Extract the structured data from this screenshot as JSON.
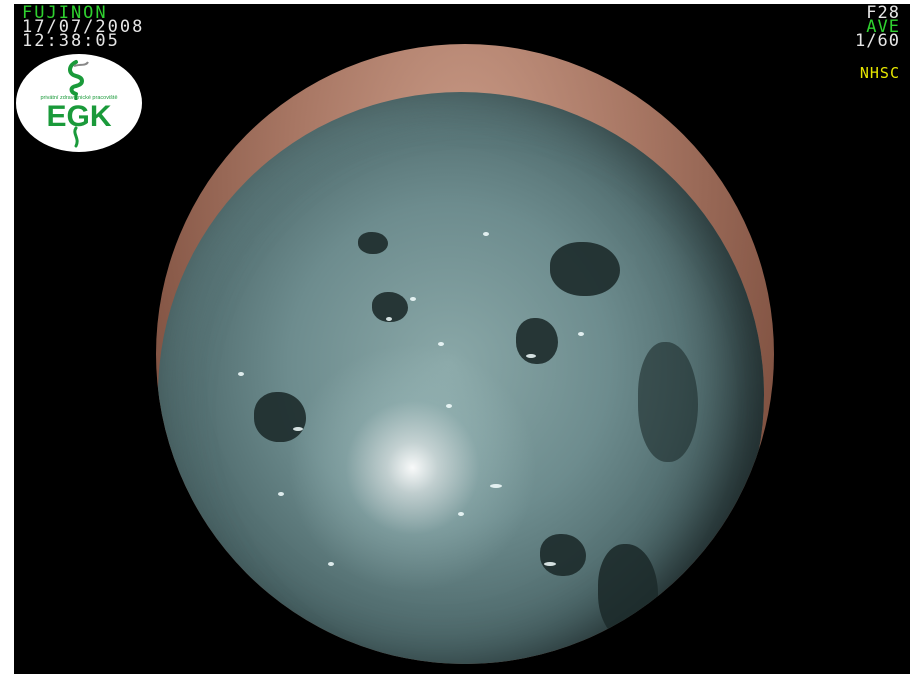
{
  "overlay": {
    "brand": "FUJINON",
    "date": "17/07/2008",
    "time": "12:38:05",
    "frame_code": "F28",
    "mode": "AVE",
    "shutter": "1/60",
    "nhsc": "NHSC"
  },
  "logo": {
    "name": "EGK",
    "tagline": "privátní zdravotnické pracoviště",
    "icon": "caduceus-icon"
  },
  "colors": {
    "overlay_green": "#2fd12f",
    "overlay_white": "#e6e6e6",
    "overlay_yellow": "#e6e600",
    "logo_green": "#1a9a3a",
    "background": "#000000"
  }
}
